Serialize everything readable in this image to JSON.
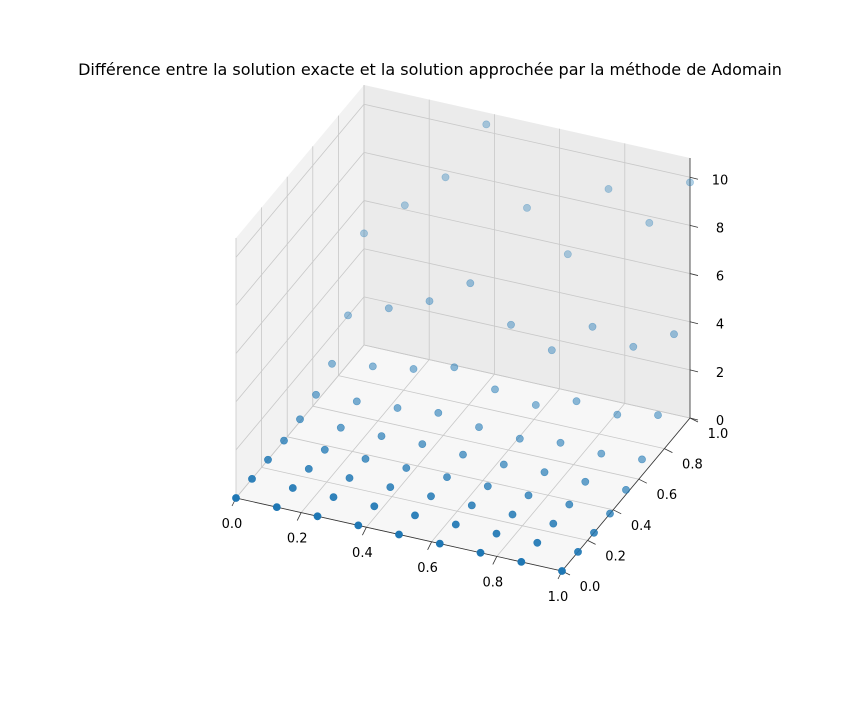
{
  "chart_data": {
    "type": "scatter",
    "projection": "3d",
    "title": "Différence entre la solution exacte et la solution approchée par la méthode de Adomain",
    "xlabel": "",
    "ylabel": "",
    "zlabel": "",
    "xlim": [
      0,
      1
    ],
    "ylim": [
      0,
      1
    ],
    "zlim": [
      0,
      10
    ],
    "grid": true,
    "x_ticks": [
      "0.0",
      "0.2",
      "0.4",
      "0.6",
      "0.8",
      "1.0"
    ],
    "y_ticks": [
      "0.0",
      "0.2",
      "0.4",
      "0.6",
      "0.8",
      "1.0"
    ],
    "z_ticks": [
      "0",
      "2",
      "4",
      "6",
      "8",
      "10"
    ],
    "marker_color": "#1f77b4",
    "grid_values": [
      0,
      0.125,
      0.25,
      0.375,
      0.5,
      0.625,
      0.75,
      0.875,
      1.0
    ],
    "z_profile_by_y": [
      0,
      0,
      0,
      0,
      0.2,
      0.7,
      1.8,
      4.5,
      10.3
    ],
    "z_scale_by_x": [
      0.45,
      0.6,
      0.75,
      1.0,
      0.7,
      0.55,
      0.85,
      0.75,
      0.95
    ]
  }
}
